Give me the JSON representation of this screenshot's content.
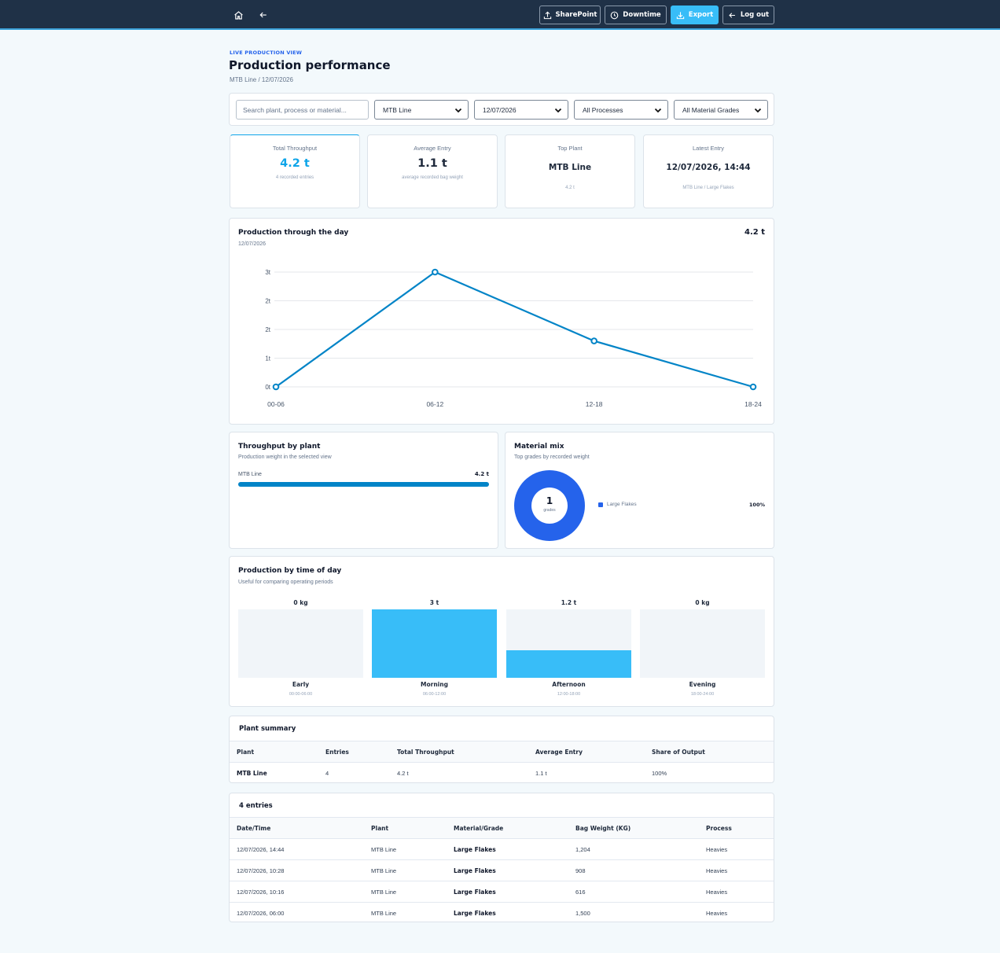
{
  "nav": {
    "sharepoint": "SharePoint",
    "downtime": "Downtime",
    "export": "Export",
    "logout": "Log out",
    "icons": [
      "home-icon",
      "arrow-left-icon",
      "upload-icon",
      "clock-icon",
      "download-icon",
      "logout-icon"
    ]
  },
  "header": {
    "eyebrow": "LIVE PRODUCTION VIEW",
    "title": "Production performance",
    "subtitle": "MTB Line / 12/07/2026"
  },
  "filters": {
    "search_placeholder": "Search plant, process or material...",
    "plant": "MTB Line",
    "date": "12/07/2026",
    "process": "All Processes",
    "grade": "All Material Grades"
  },
  "kpis": [
    {
      "label": "Total Throughput",
      "value": "4.2 t",
      "note": "4 recorded entries"
    },
    {
      "label": "Average Entry",
      "value": "1.1 t",
      "note": "average recorded bag weight"
    },
    {
      "label": "Top Plant",
      "value": "MTB Line",
      "note": "4.2 t"
    },
    {
      "label": "Latest Entry",
      "value": "12/07/2026, 14:44",
      "note": "MTB Line / Large Flakes"
    }
  ],
  "colors": {
    "accent": "#0284c7",
    "bar": "#38bdf8",
    "donut": "#2563eb",
    "nav_bg": "#1f3147"
  },
  "day_chart": {
    "title": "Production through the day",
    "subtitle": "12/07/2026",
    "total": "4.2 t"
  },
  "chart_data": {
    "type": "line",
    "title": "Production through the day",
    "categories": [
      "00-06",
      "06-12",
      "12-18",
      "18-24"
    ],
    "values": [
      0,
      3.0,
      1.2,
      0
    ],
    "ytick_labels": [
      "0t",
      "1t",
      "2t",
      "2t",
      "3t"
    ],
    "ylim": [
      0,
      3
    ],
    "grid": true,
    "xlabel": "",
    "ylabel": ""
  },
  "plant_card": {
    "title": "Throughput by plant",
    "subtitle": "Production weight in the selected view",
    "rows": [
      {
        "name": "MTB Line",
        "value": "4.2 t",
        "fraction": 1.0
      }
    ]
  },
  "mix_card": {
    "title": "Material mix",
    "subtitle": "Top grades by recorded weight",
    "count": "1",
    "count_label": "grades",
    "legend": [
      {
        "name": "Large Flakes",
        "share": "100%"
      }
    ]
  },
  "tod_card": {
    "title": "Production by time of day",
    "subtitle": "Useful for comparing operating periods",
    "periods": [
      {
        "value": "0 kg",
        "name": "Early",
        "range": "00:00-06:00",
        "fraction": 0
      },
      {
        "value": "3 t",
        "name": "Morning",
        "range": "06:00-12:00",
        "fraction": 1.0
      },
      {
        "value": "1.2 t",
        "name": "Afternoon",
        "range": "12:00-18:00",
        "fraction": 0.4
      },
      {
        "value": "0 kg",
        "name": "Evening",
        "range": "18:00-24:00",
        "fraction": 0
      }
    ]
  },
  "summary": {
    "title": "Plant summary",
    "columns": [
      "Plant",
      "Entries",
      "Total Throughput",
      "Average Entry",
      "Share of Output"
    ],
    "rows": [
      [
        "MTB Line",
        "4",
        "4.2 t",
        "1.1 t",
        "100%"
      ]
    ]
  },
  "entries": {
    "title": "4 entries",
    "columns": [
      "Date/Time",
      "Plant",
      "Material/Grade",
      "Bag Weight (KG)",
      "Process"
    ],
    "rows": [
      [
        "12/07/2026, 14:44",
        "MTB Line",
        "Large Flakes",
        "1,204",
        "Heavies"
      ],
      [
        "12/07/2026, 10:28",
        "MTB Line",
        "Large Flakes",
        "908",
        "Heavies"
      ],
      [
        "12/07/2026, 10:16",
        "MTB Line",
        "Large Flakes",
        "616",
        "Heavies"
      ],
      [
        "12/07/2026, 06:00",
        "MTB Line",
        "Large Flakes",
        "1,500",
        "Heavies"
      ]
    ]
  }
}
